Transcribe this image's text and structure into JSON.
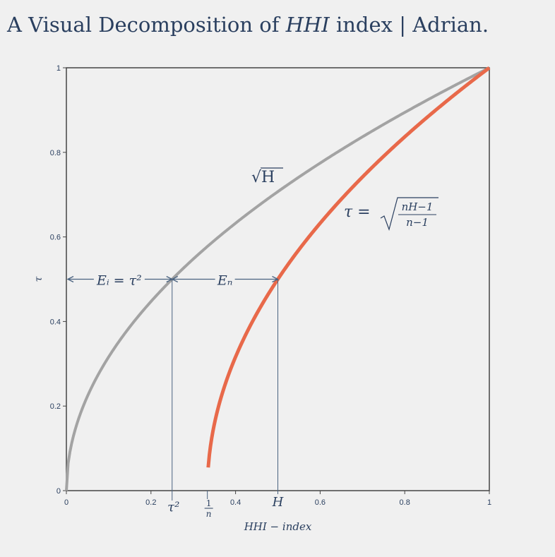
{
  "title_prefix": "A Visual Decomposition of ",
  "title_math": "HHI",
  "title_suffix": " index | Adrian.",
  "colors": {
    "background": "#f0f0f0",
    "sqrt_curve": "#a3a3a3",
    "tau_curve": "#e8694a",
    "annotation": "#4a6380",
    "text": "#2a3f5f"
  },
  "chart_data": {
    "type": "line",
    "xlabel": "HHI − index",
    "ylabel": "τ",
    "xlim": [
      0,
      1
    ],
    "ylim": [
      0,
      1
    ],
    "x_ticks": [
      "0",
      "0.2",
      "0.4",
      "0.6",
      "0.8",
      "1"
    ],
    "y_ticks": [
      "0",
      "0.2",
      "0.4",
      "0.6",
      "0.8",
      "1"
    ],
    "grid": false,
    "n": 3,
    "tau_marker": 0.5,
    "series": [
      {
        "name": "√H",
        "color": "#a3a3a3",
        "formula": "sqrt(H)",
        "x_range": [
          0,
          1
        ]
      },
      {
        "name": "τ = √((nH−1)/(n−1))",
        "color": "#e8694a",
        "formula": "sqrt((n*H-1)/(n-1))",
        "x_range": [
          0.3333,
          1
        ]
      }
    ],
    "annotations": {
      "sqrt_label": "√H",
      "tau_label_lhs": "τ =",
      "tau_label_num": "nH−1",
      "tau_label_den": "n−1",
      "ei_label": "Eᵢ = τ²",
      "en_label": "Eₙ",
      "x_marker_tau2": "τ²",
      "x_marker_1n_num": "1",
      "x_marker_1n_den": "n",
      "x_marker_H": "H"
    }
  }
}
